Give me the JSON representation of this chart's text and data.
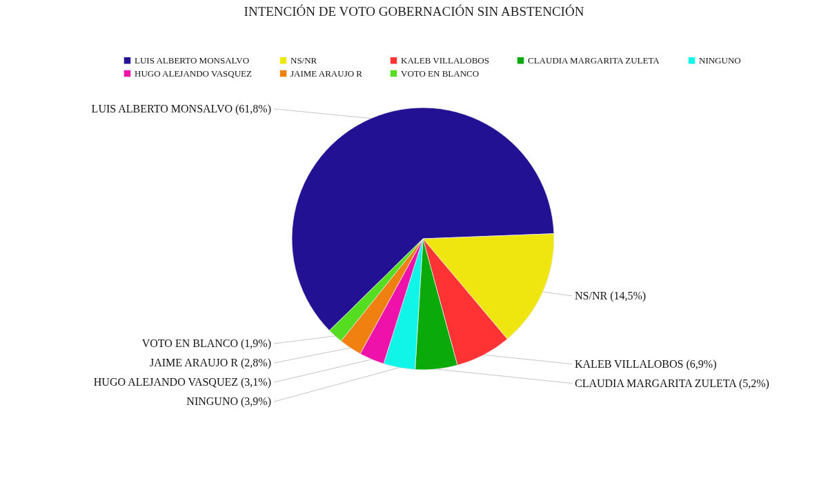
{
  "chart_data": {
    "type": "pie",
    "title": "INTENCIÓN DE VOTO GOBERNACIÓN SIN ABSTENCIÓN",
    "categories": [
      "LUIS ALBERTO MONSALVO",
      "NS/NR",
      "KALEB VILLALOBOS",
      "CLAUDIA MARGARITA ZULETA",
      "NINGUNO",
      "HUGO ALEJANDO VASQUEZ",
      "JAIME ARAUJO R",
      "VOTO EN BLANCO"
    ],
    "values": [
      61.8,
      14.5,
      6.9,
      5.2,
      3.9,
      3.1,
      2.8,
      1.9
    ],
    "colors": [
      "#221193",
      "#f0e60f",
      "#ff3333",
      "#0aaa0a",
      "#11f5e8",
      "#ee11aa",
      "#f08010",
      "#55dd22"
    ],
    "value_labels": [
      "LUIS ALBERTO MONSALVO (61,8%)",
      "NS/NR (14,5%)",
      "KALEB VILLALOBOS (6,9%)",
      "CLAUDIA MARGARITA ZULETA (5,2%)",
      "NINGUNO (3,9%)",
      "HUGO ALEJANDO VASQUEZ (3,1%)",
      "JAIME ARAUJO R (2,8%)",
      "VOTO EN BLANCO (1,9%)"
    ],
    "legend": "top"
  }
}
